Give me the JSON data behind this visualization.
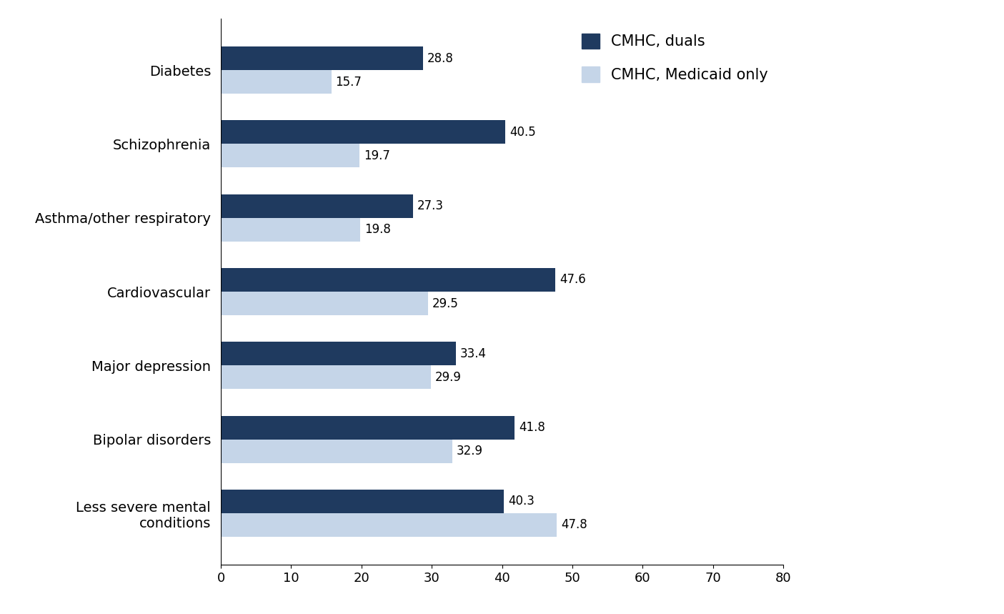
{
  "categories": [
    "Diabetes",
    "Schizophrenia",
    "Asthma/other respiratory",
    "Cardiovascular",
    "Major depression",
    "Bipolar disorders",
    "Less severe mental\nconditions"
  ],
  "duals_values": [
    28.8,
    40.5,
    27.3,
    47.6,
    33.4,
    41.8,
    40.3
  ],
  "medicaid_values": [
    15.7,
    19.7,
    19.8,
    29.5,
    29.9,
    32.9,
    47.8
  ],
  "color_duals": "#1f3a5f",
  "color_medicaid": "#c5d5e8",
  "legend_labels": [
    "CMHC, duals",
    "CMHC, Medicaid only"
  ],
  "xlim": [
    0,
    80
  ],
  "xticks": [
    0,
    10,
    20,
    30,
    40,
    50,
    60,
    70,
    80
  ],
  "bar_height": 0.32,
  "label_fontsize": 14,
  "tick_fontsize": 13,
  "legend_fontsize": 15,
  "value_fontsize": 12,
  "figsize": [
    14.05,
    8.59
  ]
}
